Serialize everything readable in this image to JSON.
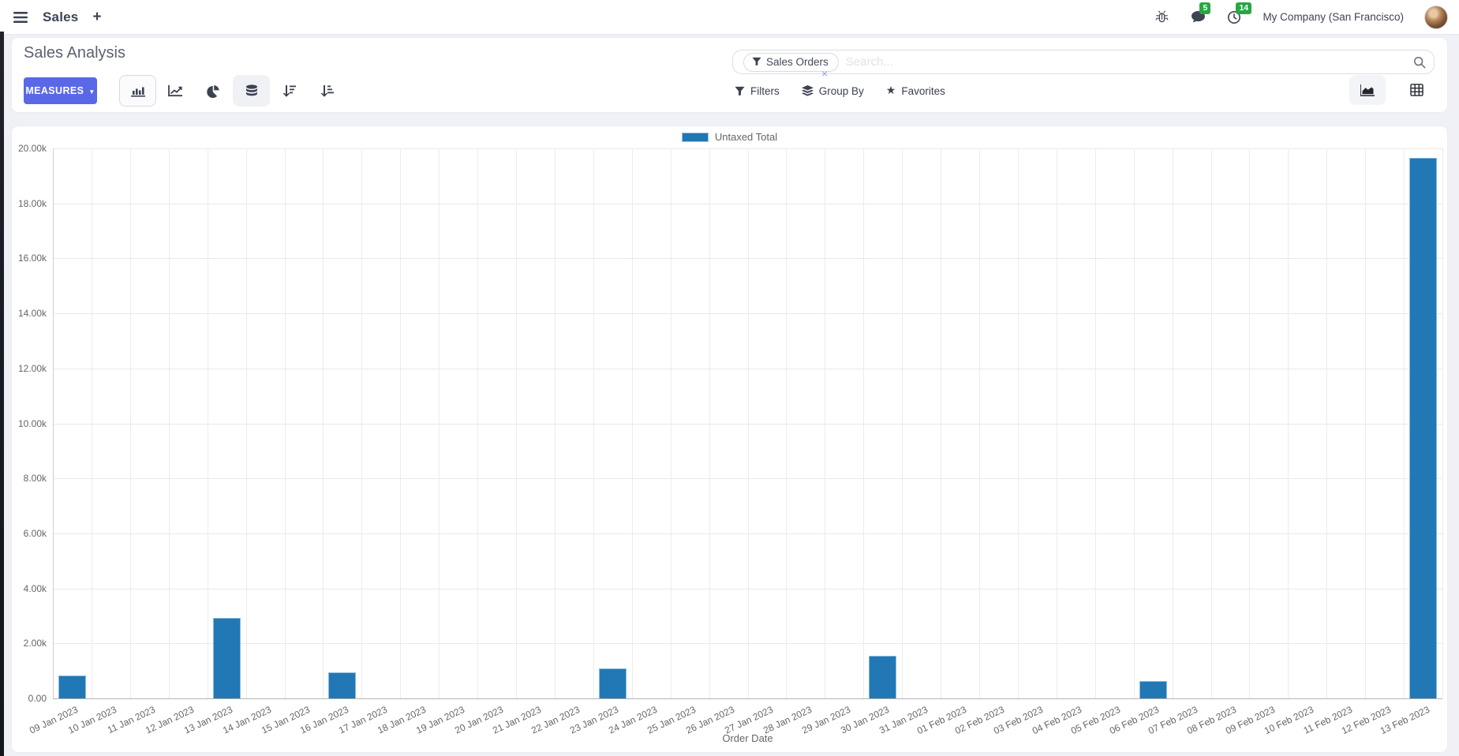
{
  "navbar": {
    "app_name": "Sales",
    "plus_label": "+",
    "messages_badge": "5",
    "activities_badge": "14",
    "company": "My Company (San Francisco)"
  },
  "control_panel": {
    "title": "Sales Analysis",
    "measures_label": "MEASURES",
    "measures_caret": "▼",
    "search": {
      "facet_label": "Sales Orders",
      "placeholder": "Search...",
      "remove_facet": "×"
    },
    "buttons": {
      "filters": "Filters",
      "group_by": "Group By",
      "favorites": "Favorites",
      "favorites_star": "★"
    }
  },
  "chart_data": {
    "type": "bar",
    "title": "",
    "xlabel": "Order Date",
    "ylabel": "",
    "ylim": [
      0,
      20000
    ],
    "grid": true,
    "legend_position": "top",
    "legend": [
      "Untaxed Total"
    ],
    "y_ticks": [
      "0.00",
      "2.00k",
      "4.00k",
      "6.00k",
      "8.00k",
      "10.00k",
      "12.00k",
      "14.00k",
      "16.00k",
      "18.00k",
      "20.00k"
    ],
    "categories": [
      "09 Jan 2023",
      "10 Jan 2023",
      "11 Jan 2023",
      "12 Jan 2023",
      "13 Jan 2023",
      "14 Jan 2023",
      "15 Jan 2023",
      "16 Jan 2023",
      "17 Jan 2023",
      "18 Jan 2023",
      "19 Jan 2023",
      "20 Jan 2023",
      "21 Jan 2023",
      "22 Jan 2023",
      "23 Jan 2023",
      "24 Jan 2023",
      "25 Jan 2023",
      "26 Jan 2023",
      "27 Jan 2023",
      "28 Jan 2023",
      "29 Jan 2023",
      "30 Jan 2023",
      "31 Jan 2023",
      "01 Feb 2023",
      "02 Feb 2023",
      "03 Feb 2023",
      "04 Feb 2023",
      "05 Feb 2023",
      "06 Feb 2023",
      "07 Feb 2023",
      "08 Feb 2023",
      "09 Feb 2023",
      "10 Feb 2023",
      "11 Feb 2023",
      "12 Feb 2023",
      "13 Feb 2023"
    ],
    "series": [
      {
        "name": "Untaxed Total",
        "values": [
          830,
          0,
          0,
          0,
          2920,
          0,
          0,
          950,
          0,
          0,
          0,
          0,
          0,
          0,
          1080,
          0,
          0,
          0,
          0,
          0,
          0,
          1540,
          0,
          0,
          0,
          0,
          0,
          0,
          630,
          0,
          0,
          0,
          0,
          0,
          0,
          19660
        ]
      }
    ],
    "colors": {
      "bar": "#2178b5",
      "bar_border": "#8bbcdf",
      "accent": "#5a68e8",
      "badge_green": "#28a745"
    }
  }
}
